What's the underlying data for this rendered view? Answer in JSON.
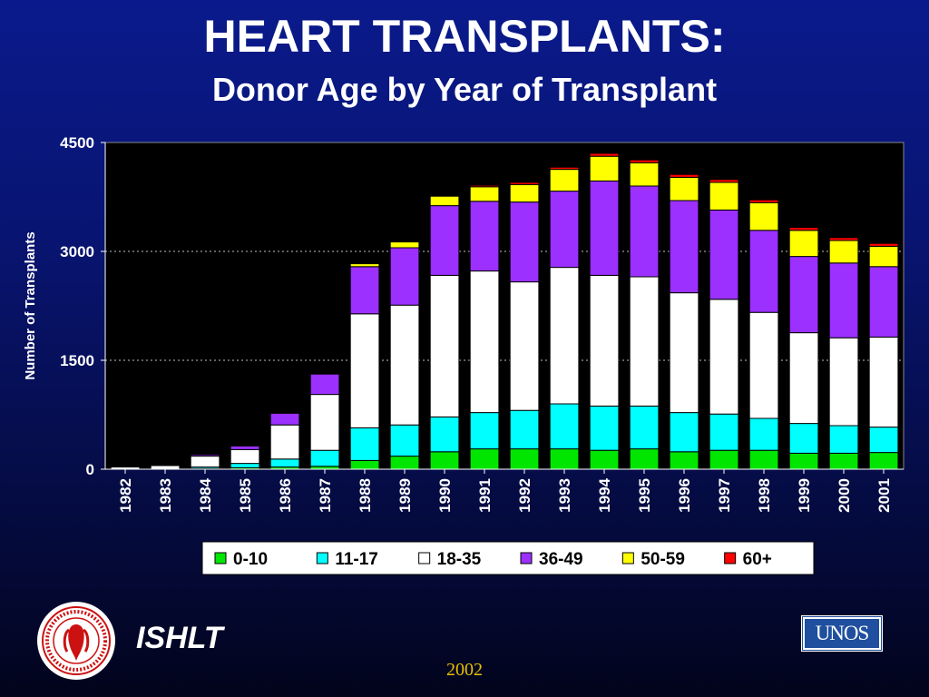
{
  "slide": {
    "title": "HEART TRANSPLANTS:",
    "subtitle": "Donor Age by Year of Transplant",
    "org": "ISHLT",
    "year": "2002",
    "unos_label": "UNOS",
    "seal_text": "INTERNATIONAL SOCIETY FOR HEART & LUNG TRANSPLANTATION"
  },
  "chart_data": {
    "type": "bar",
    "stacked": true,
    "title": "",
    "xlabel": "",
    "ylabel": "Number of Transplants",
    "ylim": [
      0,
      4500
    ],
    "yticks": [
      0,
      1500,
      3000,
      4500
    ],
    "grid": "dotted horizontal",
    "legend_position": "bottom",
    "categories": [
      "1982",
      "1983",
      "1984",
      "1985",
      "1986",
      "1987",
      "1988",
      "1989",
      "1990",
      "1991",
      "1992",
      "1993",
      "1994",
      "1995",
      "1996",
      "1997",
      "1998",
      "1999",
      "2000",
      "2001"
    ],
    "series": [
      {
        "name": "0-10",
        "color": "#00e600",
        "values": [
          0,
          0,
          10,
          20,
          30,
          40,
          120,
          180,
          240,
          280,
          280,
          280,
          260,
          280,
          240,
          260,
          260,
          220,
          220,
          230
        ]
      },
      {
        "name": "11-17",
        "color": "#00ffff",
        "values": [
          0,
          0,
          20,
          60,
          110,
          220,
          450,
          430,
          480,
          500,
          530,
          620,
          610,
          590,
          540,
          500,
          440,
          410,
          380,
          350
        ]
      },
      {
        "name": "18-35",
        "color": "#ffffff",
        "values": [
          30,
          50,
          150,
          190,
          470,
          770,
          1570,
          1650,
          1950,
          1950,
          1770,
          1880,
          1800,
          1780,
          1650,
          1580,
          1460,
          1250,
          1210,
          1240
        ]
      },
      {
        "name": "36-49",
        "color": "#9b30ff",
        "values": [
          0,
          10,
          20,
          50,
          160,
          280,
          650,
          790,
          960,
          960,
          1100,
          1050,
          1300,
          1250,
          1270,
          1230,
          1130,
          1050,
          1030,
          970
        ]
      },
      {
        "name": "50-59",
        "color": "#ffff00",
        "values": [
          0,
          0,
          0,
          0,
          0,
          0,
          40,
          80,
          130,
          200,
          240,
          300,
          340,
          320,
          320,
          380,
          380,
          360,
          310,
          280
        ]
      },
      {
        "name": "60+",
        "color": "#ff0000",
        "values": [
          0,
          0,
          0,
          0,
          0,
          0,
          0,
          0,
          0,
          20,
          30,
          30,
          40,
          40,
          40,
          40,
          40,
          40,
          40,
          40
        ]
      }
    ]
  }
}
